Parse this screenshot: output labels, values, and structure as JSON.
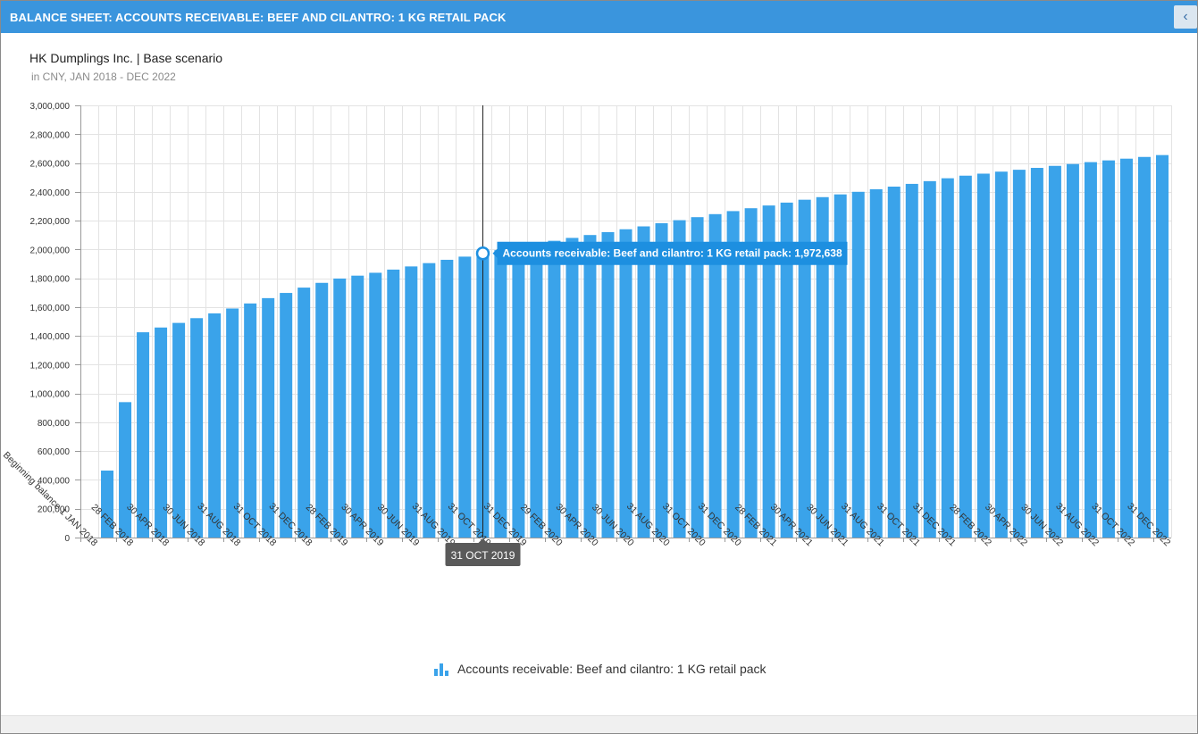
{
  "window": {
    "title": "BALANCE SHEET: ACCOUNTS RECEIVABLE: BEEF AND CILANTRO: 1 KG RETAIL PACK",
    "collapse_icon": "chevron-left-icon",
    "collapse_glyph": "‹"
  },
  "header": {
    "company": "HK Dumplings Inc. | Base scenario",
    "subtitle": "in CNY, JAN 2018 - DEC 2022"
  },
  "colors": {
    "accent": "#3a95dd",
    "bar": "#3aa3ea",
    "grid": "#e3e3e3",
    "tooltip_bg": "#1d8fe0",
    "crosshair_label_bg": "#5a5a5a"
  },
  "tooltip": {
    "text": "Accounts receivable: Beef and cilantro: 1 KG retail pack: 1,972,638",
    "date_label": "31 OCT 2019",
    "index": 22
  },
  "legend": {
    "label": "Accounts receivable: Beef and cilantro: 1 KG retail pack",
    "icon": "bar-chart-icon"
  },
  "chart_data": {
    "type": "bar",
    "ylim": [
      0,
      3000000
    ],
    "yticks": [
      0,
      200000,
      400000,
      600000,
      800000,
      1000000,
      1200000,
      1400000,
      1600000,
      1800000,
      2000000,
      2200000,
      2400000,
      2600000,
      2800000,
      3000000
    ],
    "ytick_labels": [
      "0",
      "200,000",
      "400,000",
      "600,000",
      "800,000",
      "1,000,000",
      "1,200,000",
      "1,400,000",
      "1,600,000",
      "1,800,000",
      "2,000,000",
      "2,200,000",
      "2,400,000",
      "2,600,000",
      "2,800,000",
      "3,000,000"
    ],
    "grid": true,
    "categories": [
      "Beginning balance 1 JAN 2018",
      "31 JAN 2018",
      "28 FEB 2018",
      "31 MAR 2018",
      "30 APR 2018",
      "31 MAY 2018",
      "30 JUN 2018",
      "31 JUL 2018",
      "31 AUG 2018",
      "30 SEP 2018",
      "31 OCT 2018",
      "30 NOV 2018",
      "31 DEC 2018",
      "31 JAN 2019",
      "28 FEB 2019",
      "31 MAR 2019",
      "30 APR 2019",
      "31 MAY 2019",
      "30 JUN 2019",
      "31 JUL 2019",
      "31 AUG 2019",
      "30 SEP 2019",
      "31 OCT 2019",
      "30 NOV 2019",
      "31 DEC 2019",
      "31 JAN 2020",
      "29 FEB 2020",
      "31 MAR 2020",
      "30 APR 2020",
      "31 MAY 2020",
      "30 JUN 2020",
      "31 JUL 2020",
      "31 AUG 2020",
      "30 SEP 2020",
      "31 OCT 2020",
      "30 NOV 2020",
      "31 DEC 2020",
      "31 JAN 2021",
      "28 FEB 2021",
      "31 MAR 2021",
      "30 APR 2021",
      "31 MAY 2021",
      "30 JUN 2021",
      "31 JUL 2021",
      "31 AUG 2021",
      "30 SEP 2021",
      "31 OCT 2021",
      "30 NOV 2021",
      "31 DEC 2021",
      "31 JAN 2022",
      "28 FEB 2022",
      "31 MAR 2022",
      "30 APR 2022",
      "31 MAY 2022",
      "30 JUN 2022",
      "31 JUL 2022",
      "31 AUG 2022",
      "30 SEP 2022",
      "31 OCT 2022",
      "30 NOV 2022",
      "31 DEC 2022"
    ],
    "visible_xtick_labels": {
      "0": "Beginning balance 1 JAN 2018",
      "2": "28 FEB 2018",
      "4": "30 APR 2018",
      "6": "30 JUN 2018",
      "8": "31 AUG 2018",
      "10": "31 OCT 2018",
      "12": "31 DEC 2018",
      "14": "28 FEB 2019",
      "16": "30 APR 2019",
      "18": "30 JUN 2019",
      "20": "31 AUG 2019",
      "22": "31 OCT 2019",
      "24": "31 DEC 2019",
      "26": "29 FEB 2020",
      "28": "30 APR 2020",
      "30": "30 JUN 2020",
      "32": "31 AUG 2020",
      "34": "31 OCT 2020",
      "36": "31 DEC 2020",
      "38": "28 FEB 2021",
      "40": "30 APR 2021",
      "42": "30 JUN 2021",
      "44": "31 AUG 2021",
      "46": "31 OCT 2021",
      "48": "31 DEC 2021",
      "50": "28 FEB 2022",
      "52": "30 APR 2022",
      "54": "30 JUN 2022",
      "56": "31 AUG 2022",
      "58": "31 OCT 2022",
      "60": "31 DEC 2022"
    },
    "series": [
      {
        "name": "Accounts receivable: Beef and cilantro: 1 KG retail pack",
        "values": [
          0,
          465000,
          940000,
          1425000,
          1458000,
          1490000,
          1523000,
          1556000,
          1590000,
          1625000,
          1662000,
          1698000,
          1735000,
          1768000,
          1798000,
          1818000,
          1838000,
          1860000,
          1882000,
          1905000,
          1928000,
          1950000,
          1972638,
          1995000,
          2018000,
          2040000,
          2060000,
          2080000,
          2100000,
          2120000,
          2140000,
          2160000,
          2182000,
          2203000,
          2224000,
          2245000,
          2266000,
          2286000,
          2305000,
          2325000,
          2345000,
          2363000,
          2382000,
          2400000,
          2418000,
          2436000,
          2455000,
          2474000,
          2494000,
          2512000,
          2526000,
          2540000,
          2553000,
          2566000,
          2580000,
          2593000,
          2606000,
          2618000,
          2630000,
          2642000,
          2655000
        ]
      }
    ]
  }
}
